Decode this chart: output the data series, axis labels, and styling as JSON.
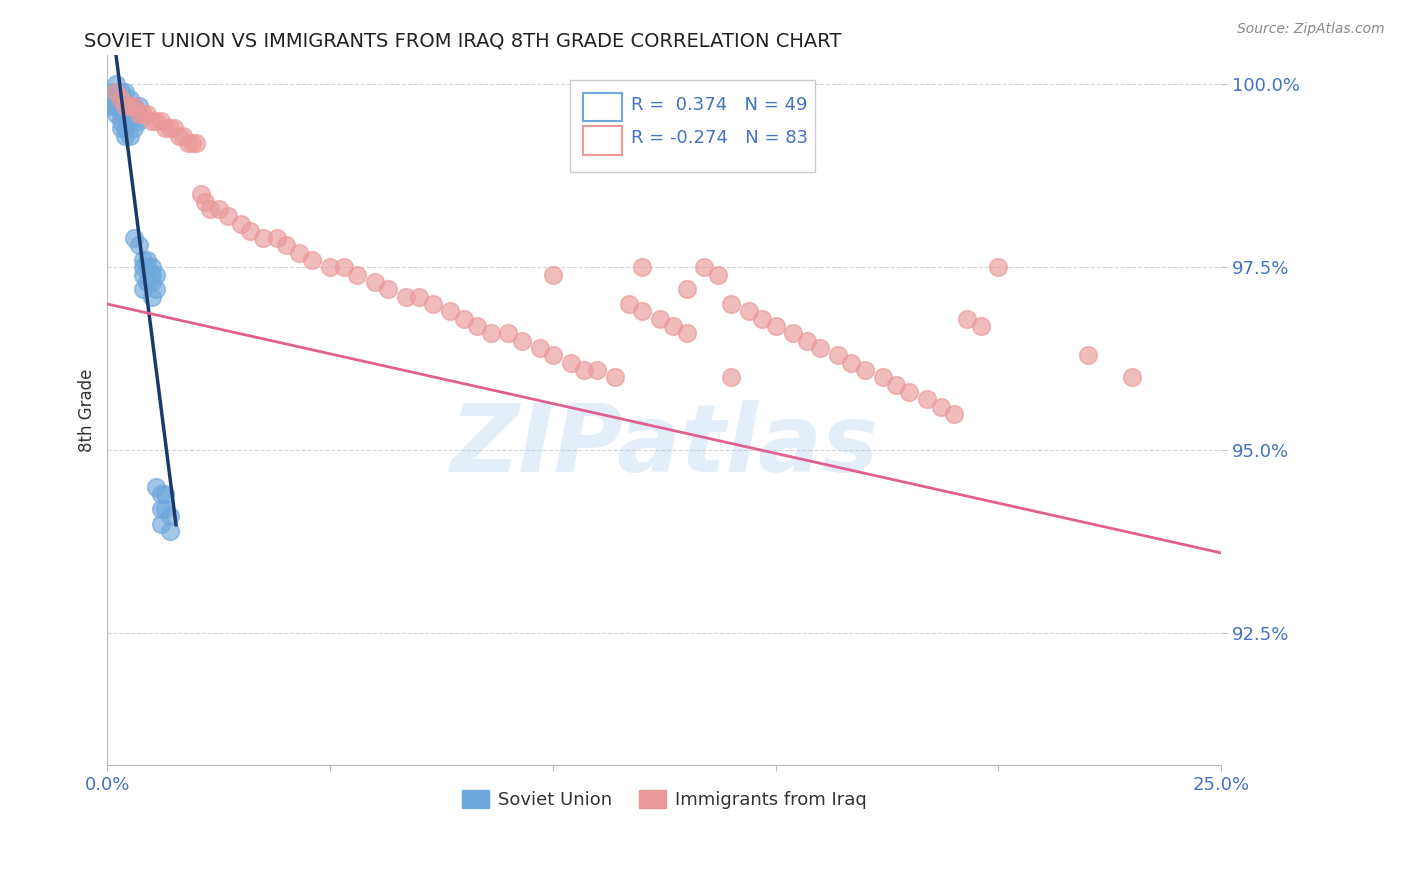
{
  "title": "SOVIET UNION VS IMMIGRANTS FROM IRAQ 8TH GRADE CORRELATION CHART",
  "source": "Source: ZipAtlas.com",
  "ylabel": "8th Grade",
  "x_min": 0.0,
  "x_max": 0.25,
  "y_min": 0.907,
  "y_max": 1.004,
  "y_ticks": [
    0.925,
    0.95,
    0.975,
    1.0
  ],
  "y_tick_labels": [
    "92.5%",
    "95.0%",
    "97.5%",
    "100.0%"
  ],
  "blue_R": 0.374,
  "blue_N": 49,
  "pink_R": -0.274,
  "pink_N": 83,
  "blue_color": "#6fa8dc",
  "pink_color": "#ea9999",
  "blue_line_color": "#1a3a6b",
  "pink_line_color": "#e06090",
  "legend_blue_label": "Soviet Union",
  "legend_pink_label": "Immigrants from Iraq",
  "watermark": "ZIPatlas",
  "watermark_color": "#a8c8e8",
  "background_color": "#ffffff",
  "title_color": "#222222",
  "axis_label_color": "#333333",
  "tick_color": "#4472c4",
  "grid_color": "#cccccc",
  "blue_scatter_x": [
    0.001,
    0.001,
    0.001,
    0.002,
    0.002,
    0.002,
    0.002,
    0.003,
    0.003,
    0.003,
    0.003,
    0.003,
    0.004,
    0.004,
    0.004,
    0.004,
    0.004,
    0.005,
    0.005,
    0.005,
    0.005,
    0.006,
    0.006,
    0.006,
    0.006,
    0.007,
    0.007,
    0.007,
    0.008,
    0.008,
    0.008,
    0.008,
    0.009,
    0.009,
    0.009,
    0.01,
    0.01,
    0.01,
    0.01,
    0.011,
    0.011,
    0.011,
    0.012,
    0.012,
    0.012,
    0.013,
    0.013,
    0.014,
    0.014
  ],
  "blue_scatter_y": [
    0.999,
    0.998,
    0.997,
    1.0,
    0.999,
    0.997,
    0.996,
    0.999,
    0.998,
    0.996,
    0.995,
    0.994,
    0.999,
    0.997,
    0.996,
    0.994,
    0.993,
    0.998,
    0.996,
    0.995,
    0.993,
    0.997,
    0.996,
    0.994,
    0.979,
    0.997,
    0.995,
    0.978,
    0.976,
    0.975,
    0.974,
    0.972,
    0.976,
    0.975,
    0.973,
    0.975,
    0.974,
    0.973,
    0.971,
    0.974,
    0.972,
    0.945,
    0.944,
    0.942,
    0.94,
    0.944,
    0.942,
    0.941,
    0.939
  ],
  "pink_scatter_x": [
    0.002,
    0.003,
    0.004,
    0.005,
    0.006,
    0.007,
    0.008,
    0.009,
    0.01,
    0.011,
    0.012,
    0.013,
    0.014,
    0.015,
    0.016,
    0.017,
    0.018,
    0.019,
    0.02,
    0.021,
    0.022,
    0.023,
    0.025,
    0.027,
    0.03,
    0.032,
    0.035,
    0.038,
    0.04,
    0.043,
    0.046,
    0.05,
    0.053,
    0.056,
    0.06,
    0.063,
    0.067,
    0.07,
    0.073,
    0.077,
    0.08,
    0.083,
    0.086,
    0.09,
    0.093,
    0.097,
    0.1,
    0.104,
    0.107,
    0.11,
    0.114,
    0.117,
    0.12,
    0.124,
    0.127,
    0.13,
    0.134,
    0.137,
    0.14,
    0.144,
    0.147,
    0.15,
    0.154,
    0.157,
    0.16,
    0.164,
    0.167,
    0.17,
    0.174,
    0.177,
    0.18,
    0.184,
    0.187,
    0.19,
    0.193,
    0.196,
    0.2,
    0.23,
    0.1,
    0.12,
    0.13,
    0.22,
    0.14
  ],
  "pink_scatter_y": [
    0.999,
    0.998,
    0.997,
    0.997,
    0.997,
    0.996,
    0.996,
    0.996,
    0.995,
    0.995,
    0.995,
    0.994,
    0.994,
    0.994,
    0.993,
    0.993,
    0.992,
    0.992,
    0.992,
    0.985,
    0.984,
    0.983,
    0.983,
    0.982,
    0.981,
    0.98,
    0.979,
    0.979,
    0.978,
    0.977,
    0.976,
    0.975,
    0.975,
    0.974,
    0.973,
    0.972,
    0.971,
    0.971,
    0.97,
    0.969,
    0.968,
    0.967,
    0.966,
    0.966,
    0.965,
    0.964,
    0.963,
    0.962,
    0.961,
    0.961,
    0.96,
    0.97,
    0.969,
    0.968,
    0.967,
    0.966,
    0.975,
    0.974,
    0.96,
    0.969,
    0.968,
    0.967,
    0.966,
    0.965,
    0.964,
    0.963,
    0.962,
    0.961,
    0.96,
    0.959,
    0.958,
    0.957,
    0.956,
    0.955,
    0.968,
    0.967,
    0.975,
    0.96,
    0.974,
    0.975,
    0.972,
    0.963,
    0.97
  ],
  "pink_line_x0": 0.0,
  "pink_line_y0": 0.97,
  "pink_line_x1": 0.25,
  "pink_line_y1": 0.936
}
